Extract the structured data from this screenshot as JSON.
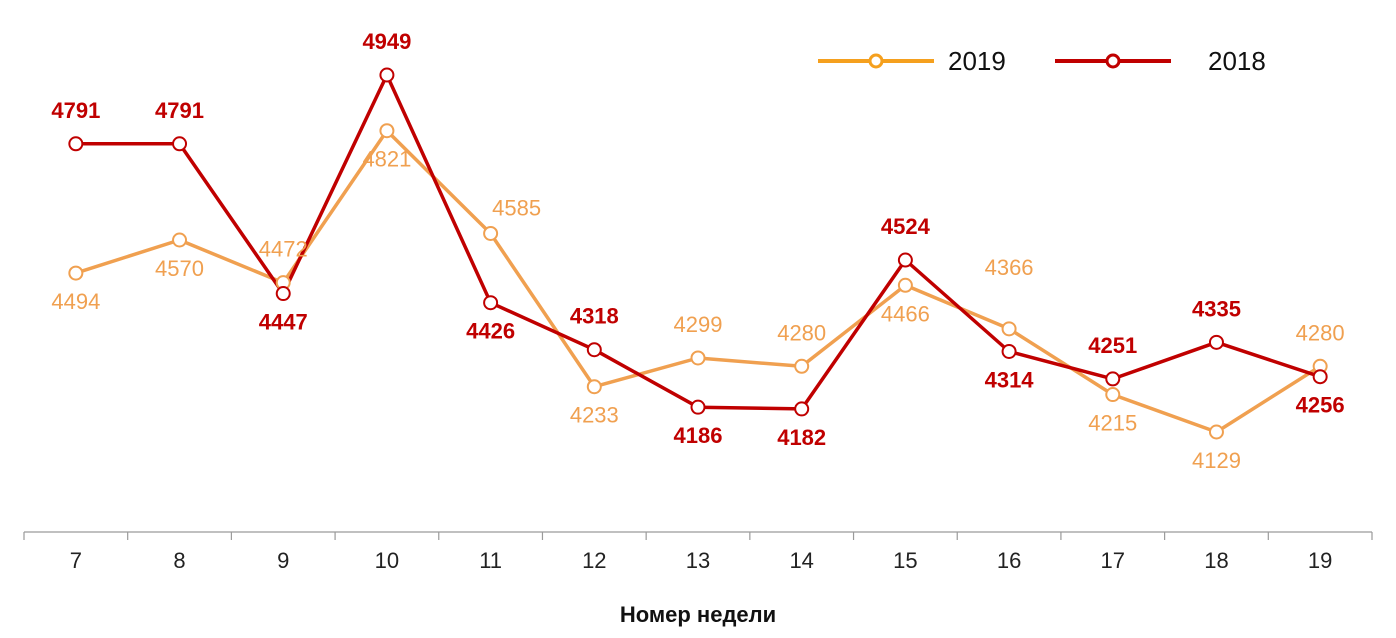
{
  "chart_data": {
    "type": "line",
    "categories": [
      "7",
      "8",
      "9",
      "10",
      "11",
      "12",
      "13",
      "14",
      "15",
      "16",
      "17",
      "18",
      "19"
    ],
    "xlabel": "Номер недели",
    "ylim": [
      3950,
      5050
    ],
    "grid": false,
    "legend": "top-right",
    "series": [
      {
        "name": "2019",
        "color": "#f0a050",
        "legend_color": "#f5a01e",
        "values": [
          4494,
          4570,
          4472,
          4821,
          4585,
          4233,
          4299,
          4280,
          4466,
          4366,
          4215,
          4129,
          4280
        ],
        "labels": [
          "4494",
          "4570",
          "4472",
          "4821",
          "4585",
          "4233",
          "4299",
          "4280",
          "4466",
          "4366",
          "4215",
          "4129",
          "4280"
        ]
      },
      {
        "name": "2018",
        "color": "#c00000",
        "legend_color": "#c00000",
        "values": [
          4791,
          4791,
          4447,
          4949,
          4426,
          4318,
          4186,
          4182,
          4524,
          4314,
          4251,
          4335,
          4256
        ],
        "labels": [
          "4791",
          "4791",
          "4447",
          "4949",
          "4426",
          "4318",
          "4186",
          "4182",
          "4524",
          "4314",
          "4251",
          "4335",
          "4256"
        ]
      }
    ]
  }
}
